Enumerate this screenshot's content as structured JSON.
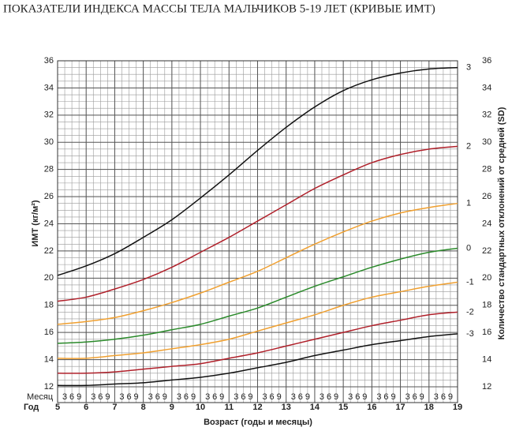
{
  "chart_data": {
    "type": "line",
    "title": "ПОКАЗАТЕЛИ ИНДЕКСА МАССЫ ТЕЛА МАЛЬЧИКОВ 5-19 ЛЕТ (КРИВЫЕ ИМТ)",
    "y_label": "ИМТ (кг/м²)",
    "y2_label": "Количество стандартных отклонений от средней (SD)",
    "x_label": "Возраст (годы и месяцы)",
    "month_row_label": "Месяц",
    "year_row_label": "Год",
    "month_labels": [
      "3",
      "6",
      "9"
    ],
    "x": [
      5,
      6,
      7,
      8,
      9,
      10,
      11,
      12,
      13,
      14,
      15,
      16,
      17,
      18,
      19
    ],
    "xlim": [
      5,
      19
    ],
    "xticks": [
      5,
      6,
      7,
      8,
      9,
      10,
      11,
      12,
      13,
      14,
      15,
      16,
      17,
      18,
      19
    ],
    "ylim": [
      12,
      36
    ],
    "yticks": [
      12,
      14,
      16,
      18,
      20,
      22,
      24,
      26,
      28,
      30,
      32,
      34,
      36
    ],
    "grid": true,
    "series": [
      {
        "name": "3",
        "color": "#111111",
        "values": [
          20.2,
          20.9,
          21.8,
          23.0,
          24.3,
          25.9,
          27.6,
          29.4,
          31.1,
          32.6,
          33.8,
          34.6,
          35.1,
          35.4,
          35.5
        ]
      },
      {
        "name": "2",
        "color": "#b0202a",
        "values": [
          18.3,
          18.6,
          19.2,
          19.9,
          20.8,
          21.9,
          23.0,
          24.2,
          25.4,
          26.6,
          27.6,
          28.5,
          29.1,
          29.5,
          29.7
        ]
      },
      {
        "name": "1",
        "color": "#f0a030",
        "values": [
          16.6,
          16.8,
          17.1,
          17.6,
          18.2,
          18.9,
          19.7,
          20.5,
          21.5,
          22.5,
          23.4,
          24.2,
          24.8,
          25.2,
          25.5
        ]
      },
      {
        "name": "0",
        "color": "#2a8a2a",
        "values": [
          15.2,
          15.3,
          15.5,
          15.8,
          16.2,
          16.6,
          17.2,
          17.8,
          18.6,
          19.4,
          20.1,
          20.8,
          21.4,
          21.9,
          22.2
        ]
      },
      {
        "name": "-1",
        "color": "#f0a030",
        "values": [
          14.1,
          14.1,
          14.3,
          14.5,
          14.8,
          15.1,
          15.5,
          16.1,
          16.7,
          17.3,
          18.0,
          18.6,
          19.0,
          19.4,
          19.7
        ]
      },
      {
        "name": "-2",
        "color": "#b0202a",
        "values": [
          13.0,
          13.0,
          13.1,
          13.3,
          13.5,
          13.7,
          14.1,
          14.5,
          15.0,
          15.5,
          16.0,
          16.5,
          16.9,
          17.3,
          17.5
        ]
      },
      {
        "name": "-3",
        "color": "#111111",
        "values": [
          12.1,
          12.1,
          12.2,
          12.3,
          12.5,
          12.7,
          13.0,
          13.4,
          13.8,
          14.3,
          14.7,
          15.1,
          15.4,
          15.7,
          15.9
        ]
      }
    ]
  }
}
